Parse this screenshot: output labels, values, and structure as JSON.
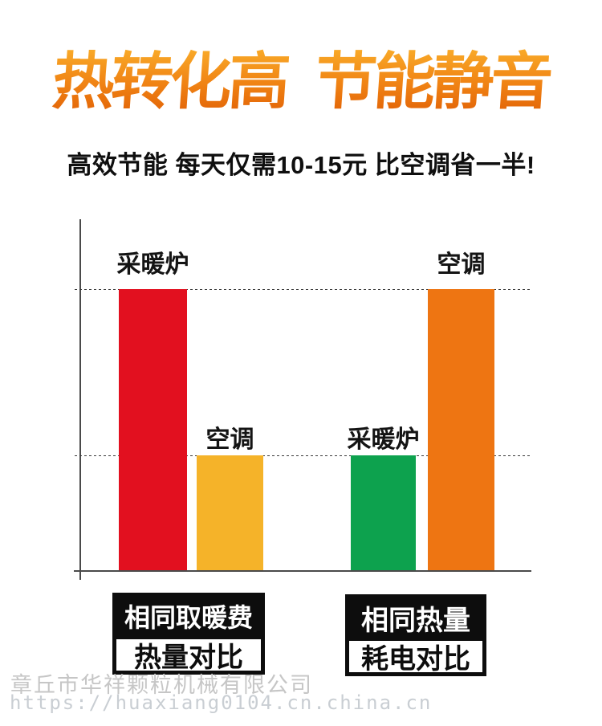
{
  "header": {
    "title": "热转化高  节能静音",
    "subtitle": "高效节能 每天仅需10-15元 比空调省一半!"
  },
  "chart_data": {
    "type": "bar",
    "title": "热转化高 节能静音",
    "subtitle": "高效节能 每天仅需10-15元 比空调省一半!",
    "categories": [
      "相同取暖费 热量对比",
      "相同热量 耗电对比"
    ],
    "bars": [
      {
        "group": "相同取暖费 热量对比",
        "label": "采暖炉",
        "value": 100,
        "color": "#e2101f"
      },
      {
        "group": "相同取暖费 热量对比",
        "label": "空调",
        "value": 41,
        "color": "#f5b329"
      },
      {
        "group": "相同热量 耗电对比",
        "label": "采暖炉",
        "value": 41,
        "color": "#0da24e"
      },
      {
        "group": "相同热量 耗电对比",
        "label": "空调",
        "value": 100,
        "color": "#ee7512"
      }
    ],
    "ylim": [
      0,
      125
    ],
    "gridline_values": [
      41,
      100
    ],
    "grid_style": "dashed",
    "legend_position": "none",
    "xlabel": "",
    "ylabel": ""
  },
  "legend_boxes": [
    {
      "top": "相同取暖费",
      "bottom": "热量对比"
    },
    {
      "top": "相同热量",
      "bottom": "耗电对比"
    }
  ],
  "watermark": {
    "company": "章丘市华祥颗粒机械有限公司",
    "url": "https://huaxiang0104.cn.china.cn"
  },
  "colors": {
    "title_gradient_top": "#f9ab29",
    "title_gradient_bottom": "#e05f05",
    "bar_red": "#e2101f",
    "bar_yellow": "#f5b329",
    "bar_green": "#0da24e",
    "bar_orange": "#ee7512",
    "axis": "#4a4a4a",
    "text": "#0f0f0f",
    "watermark_gray": "#c6c6c6"
  }
}
